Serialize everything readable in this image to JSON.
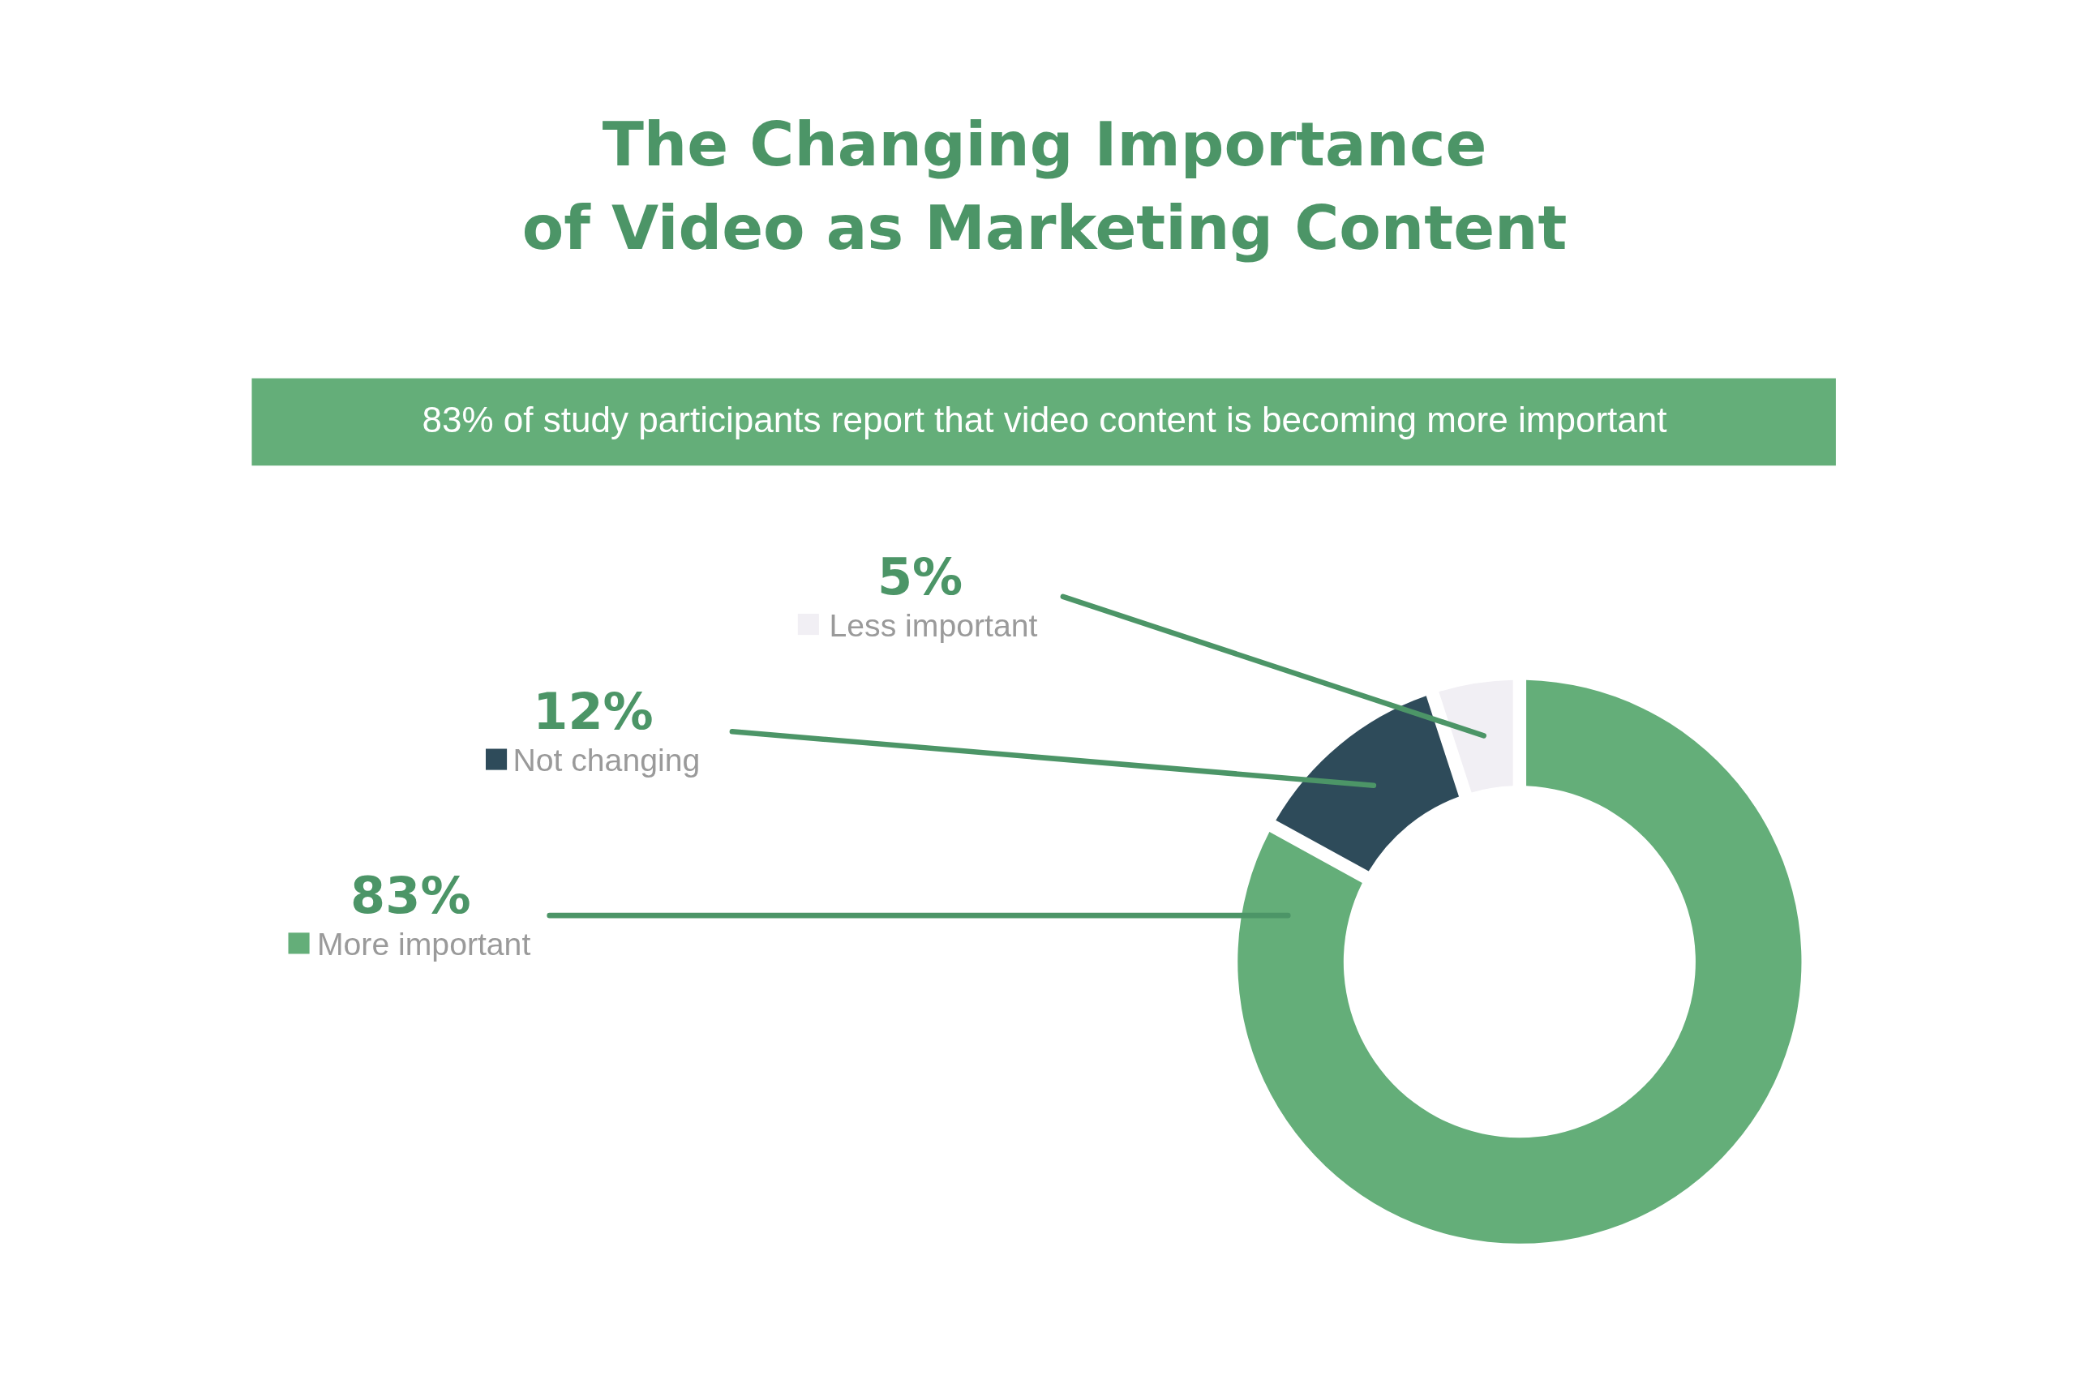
{
  "chart_data": {
    "type": "donut",
    "title": "The Changing Importance\nof Video as Marketing Content",
    "subtitle": "83% of study participants report that video content is becoming more important",
    "categories": [
      "More important",
      "Not changing",
      "Less important"
    ],
    "values": [
      83,
      12,
      5
    ],
    "colors": [
      "#64ae79",
      "#2e4b5a",
      "#f1eff4"
    ],
    "value_labels": [
      "83%",
      "12%",
      "5%"
    ],
    "legend": "left"
  }
}
